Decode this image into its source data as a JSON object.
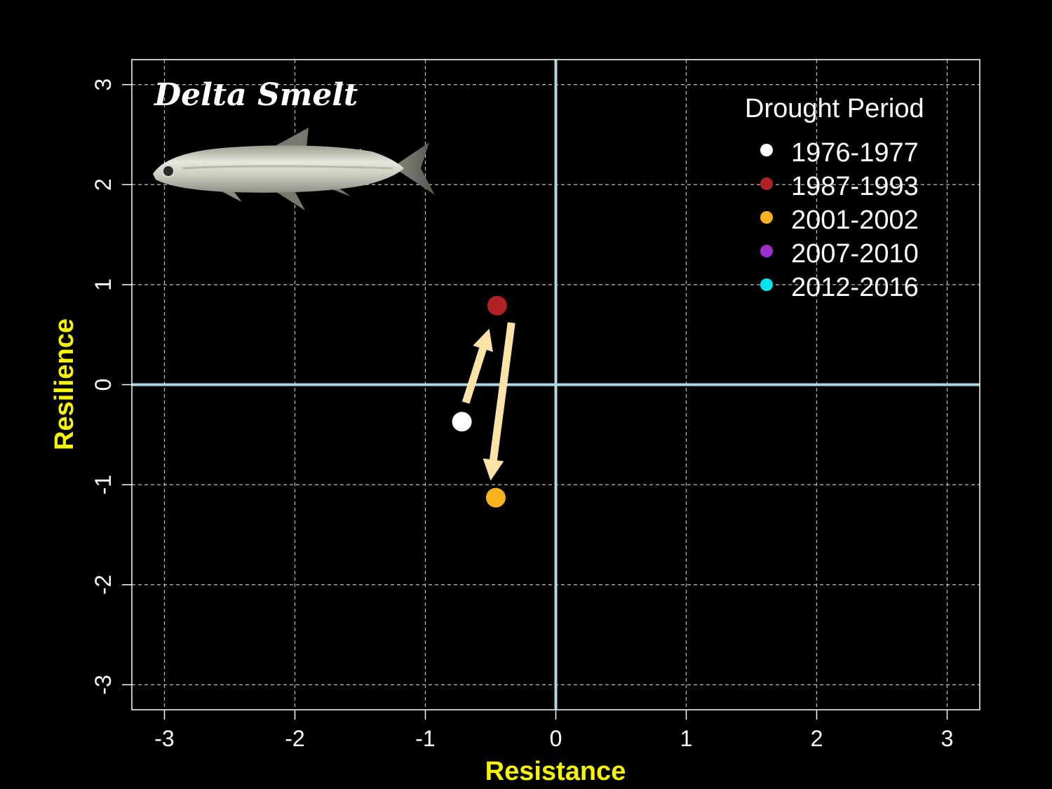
{
  "chart_data": {
    "type": "scatter",
    "title": "Delta Smelt",
    "xlabel": "Resistance",
    "ylabel": "Resilience",
    "xlim": [
      -3.25,
      3.25
    ],
    "ylim": [
      -3.25,
      3.25
    ],
    "xticks": [
      -3,
      -2,
      -1,
      0,
      1,
      2,
      3
    ],
    "yticks": [
      -3,
      -2,
      -1,
      0,
      1,
      2,
      3
    ],
    "grid": true,
    "legend": {
      "title": "Drought Period",
      "placement": "top-right",
      "entries": [
        {
          "label": "1976-1977",
          "color": "#ffffff"
        },
        {
          "label": "1987-1993",
          "color": "#b22222"
        },
        {
          "label": "2001-2002",
          "color": "#f9b21f"
        },
        {
          "label": "2007-2010",
          "color": "#9b30d0"
        },
        {
          "label": "2012-2016",
          "color": "#00e5ee"
        }
      ]
    },
    "series": [
      {
        "name": "1976-1977",
        "x": -0.72,
        "y": -0.37,
        "color": "#ffffff"
      },
      {
        "name": "1987-1993",
        "x": -0.45,
        "y": 0.79,
        "color": "#b22222"
      },
      {
        "name": "2001-2002",
        "x": -0.46,
        "y": -1.13,
        "color": "#f9b21f"
      }
    ],
    "arrows": [
      {
        "from": [
          -0.69,
          -0.18
        ],
        "to": [
          -0.51,
          0.56
        ]
      },
      {
        "from": [
          -0.34,
          0.62
        ],
        "to": [
          -0.5,
          -0.96
        ]
      }
    ],
    "reference_lines": {
      "x": 0,
      "y": 0,
      "color": "#add8e6"
    },
    "decoration": "fish-image"
  }
}
